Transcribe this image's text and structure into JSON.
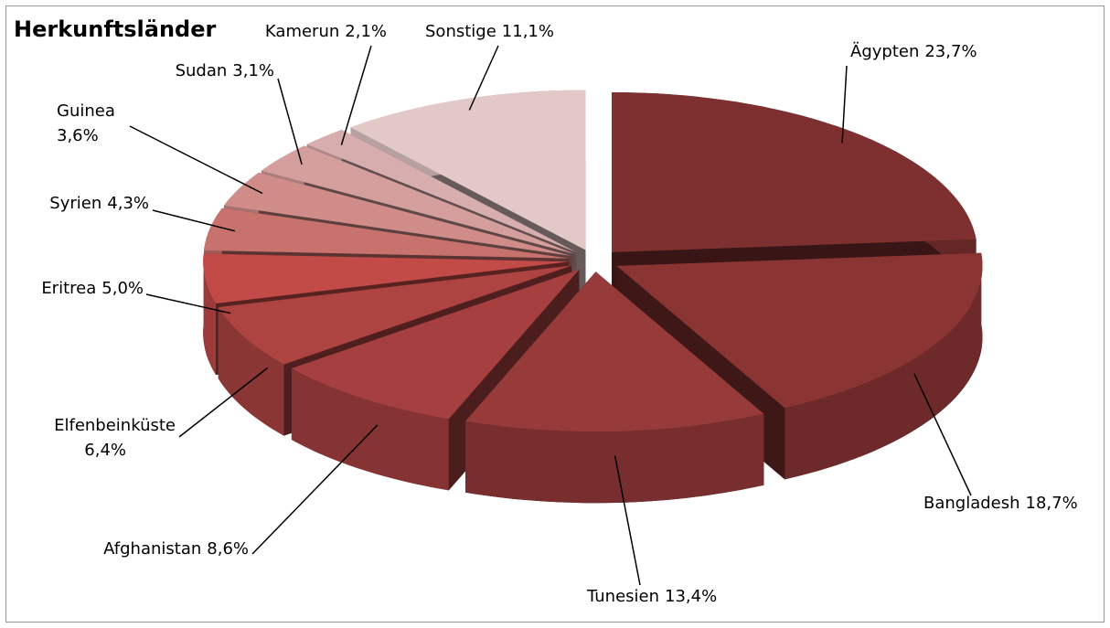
{
  "chart_data": {
    "type": "pie3d",
    "title": "Herkunftsländer",
    "categories": [
      "Ägypten",
      "Bangladesh",
      "Tunesien",
      "Afghanistan",
      "Elfenbeinküste",
      "Eritrea",
      "Syrien",
      "Guinea",
      "Sudan",
      "Kamerun",
      "Sonstige"
    ],
    "values": [
      23.7,
      18.7,
      13.4,
      8.6,
      6.4,
      5.0,
      4.3,
      3.6,
      3.1,
      2.1,
      11.1
    ],
    "value_labels": [
      "23,7%",
      "18,7%",
      "13,4%",
      "8,6%",
      "6,4%",
      "5,0%",
      "4,3%",
      "3,6%",
      "3,1%",
      "2,1%",
      "11,1%"
    ],
    "colors": [
      "#7e2f2f",
      "#8a3434",
      "#963a3a",
      "#a64040",
      "#ad4442",
      "#c24b48",
      "#c8726e",
      "#cf8c89",
      "#d49e9d",
      "#d8adad",
      "#e3c8c8"
    ]
  }
}
